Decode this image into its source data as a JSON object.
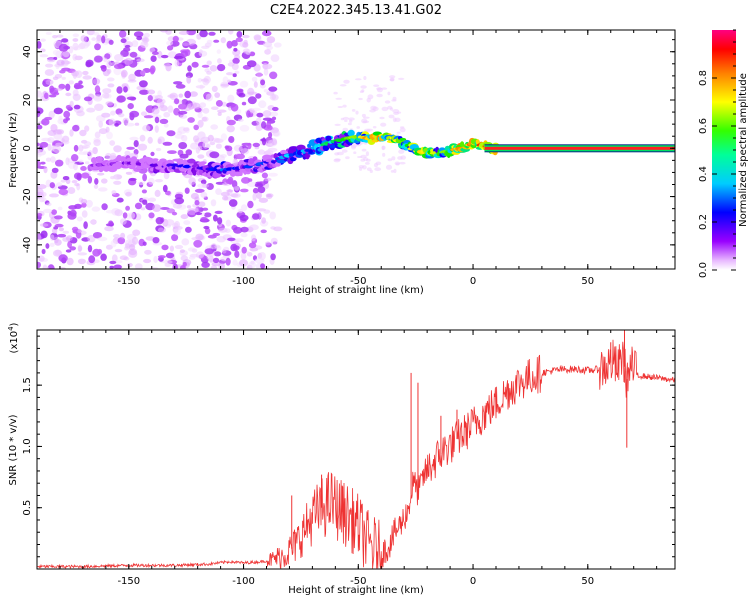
{
  "title": "C2E4.2022.345.13.41.G02",
  "chart_data": [
    {
      "type": "heatmap",
      "title": "C2E4.2022.345.13.41.G02",
      "xlabel": "Height of straight line (km)",
      "ylabel": "Frequency (Hz)",
      "xlim": [
        -190,
        88
      ],
      "ylim": [
        -50,
        49
      ],
      "xticks": [
        "-150",
        "-100",
        "-50",
        "0",
        "50"
      ],
      "xtick_values": [
        -150,
        -100,
        -50,
        0,
        50
      ],
      "yticks": [
        "-40",
        "-20",
        "0",
        "20",
        "40"
      ],
      "ytick_values": [
        -40,
        -20,
        0,
        20,
        40
      ],
      "colorbar": {
        "label": "Normalized spectral amplitude",
        "range": [
          0,
          1
        ],
        "ticks": [
          "0.0",
          "0.2",
          "0.4",
          "0.6",
          "0.8"
        ],
        "tick_values": [
          0,
          0.2,
          0.4,
          0.6,
          0.8
        ],
        "colors": [
          "#ffffff",
          "#cc66ff",
          "#7a00e6",
          "#0000ff",
          "#00e5ff",
          "#00e600",
          "#ffff00",
          "#ff8000",
          "#ff0000",
          "#ff0080"
        ]
      },
      "ridge": {
        "x": [
          -165,
          -150,
          -140,
          -130,
          -120,
          -110,
          -100,
          -90,
          -80,
          -70,
          -60,
          -50,
          -45,
          -40,
          -35,
          -30,
          -25,
          -20,
          -15,
          -10,
          -5,
          0,
          5,
          10,
          88
        ],
        "frequency": [
          -7,
          -6,
          -7,
          -7,
          -8,
          -9,
          -8,
          -6,
          -3,
          0,
          3,
          5,
          4,
          5,
          4,
          2,
          -1,
          -2,
          -2,
          -1,
          0,
          2,
          1,
          0,
          0
        ],
        "amplitude": [
          0.15,
          0.2,
          0.25,
          0.3,
          0.3,
          0.35,
          0.3,
          0.35,
          0.4,
          0.45,
          0.5,
          0.6,
          0.75,
          0.8,
          0.7,
          0.55,
          0.7,
          0.75,
          0.6,
          0.7,
          0.8,
          0.8,
          0.85,
          0.9,
          0.9
        ]
      }
    },
    {
      "type": "line",
      "xlabel": "Height of straight line (km)",
      "ylabel": "SNR (10 * v/v)",
      "exponent_label": "(x10",
      "exponent_power": "4",
      "exponent_close": ")",
      "xlim": [
        -190,
        88
      ],
      "ylim": [
        0,
        1.95
      ],
      "xticks": [
        "-150",
        "-100",
        "-50",
        "0",
        "50"
      ],
      "xtick_values": [
        -150,
        -100,
        -50,
        0,
        50
      ],
      "yticks": [
        "0.5",
        "1.0",
        "1.5"
      ],
      "ytick_values": [
        0.5,
        1.0,
        1.5
      ],
      "color": "#ee3333",
      "series": [
        {
          "name": "SNR",
          "x": [
            -190,
            -170,
            -150,
            -130,
            -115,
            -106,
            -100,
            -92,
            -87,
            -82,
            -78,
            -74,
            -70,
            -66,
            -62,
            -58,
            -54,
            -50,
            -46,
            -42,
            -40,
            -37,
            -34,
            -31,
            -28,
            -26,
            -24,
            -21,
            -18,
            -15,
            -12,
            -9,
            -6,
            -3,
            0,
            5,
            10,
            15,
            20,
            25,
            30,
            35,
            40,
            45,
            50,
            55,
            58,
            61,
            63,
            65,
            67,
            69,
            72,
            76,
            80,
            84,
            88
          ],
          "values": [
            0.02,
            0.02,
            0.03,
            0.03,
            0.04,
            0.06,
            0.05,
            0.06,
            0.08,
            0.12,
            0.18,
            0.3,
            0.42,
            0.5,
            0.55,
            0.48,
            0.42,
            0.35,
            0.22,
            0.15,
            0.12,
            0.18,
            0.3,
            0.38,
            0.5,
            0.72,
            0.62,
            0.78,
            0.85,
            0.92,
            0.98,
            1.02,
            1.08,
            1.12,
            1.18,
            1.27,
            1.35,
            1.45,
            1.52,
            1.57,
            1.6,
            1.62,
            1.63,
            1.63,
            1.62,
            1.63,
            1.65,
            1.7,
            1.62,
            1.75,
            1.55,
            1.65,
            1.58,
            1.57,
            1.56,
            1.55,
            1.54
          ],
          "spikes": [
            {
              "x": -79,
              "value": 0.6
            },
            {
              "x": -66,
              "value": 0.77
            },
            {
              "x": -57,
              "value": 0.68
            },
            {
              "x": -27,
              "value": 1.6
            },
            {
              "x": -24,
              "value": 1.52
            },
            {
              "x": -14,
              "value": 1.25
            },
            {
              "x": -7,
              "value": 1.3
            },
            {
              "x": 60,
              "value": 1.85
            },
            {
              "x": 66,
              "value": 1.95
            },
            {
              "x": 67,
              "value": 0.99
            }
          ]
        }
      ]
    }
  ]
}
